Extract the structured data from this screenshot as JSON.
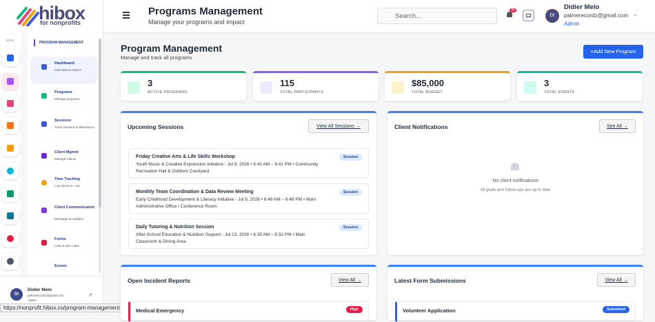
{
  "logo": {
    "name": "hibox",
    "tagline": "for nonprofits"
  },
  "rail": {
    "label": "MAIN"
  },
  "sidebar": {
    "section": "PROGRAM MANAGEMENT",
    "items": [
      {
        "title": "Dashboard",
        "subtitle": "Overview & metrics"
      },
      {
        "title": "Programs",
        "subtitle": "Manage programs"
      },
      {
        "title": "Sessions",
        "subtitle": "Track sessions & attendance"
      },
      {
        "title": "Client Mgmnt",
        "subtitle": "Manage Clients"
      },
      {
        "title": "Time Tracking",
        "subtitle": "Log clients in / out"
      },
      {
        "title": "Client Communication",
        "subtitle": "Messages & updates"
      },
      {
        "title": "Forms",
        "subtitle": "Links & QR codes"
      },
      {
        "title": "Events"
      }
    ],
    "user": {
      "initials": "DI",
      "name": "Didier Melo",
      "email": "palmerecordz@gmail.com",
      "role": "Admin"
    }
  },
  "status_url": "https://nonprofit.hibox.co/program-management",
  "header": {
    "title": "Programs Management",
    "subtitle": "Manage your programs and impact",
    "search_placeholder": "Search...",
    "notification_count": "35",
    "user": {
      "initials": "DI",
      "name": "Didier Melo",
      "email": "palmerecordz@gmail.com",
      "role": "Admin"
    }
  },
  "page": {
    "title": "Program Management",
    "subtitle": "Manage and track all programs",
    "add_button": "+Add New Program"
  },
  "stats": [
    {
      "value": "3",
      "label": "ACTIVE PROGRAMS"
    },
    {
      "value": "115",
      "label": "TOTAL PARTICIPANTS"
    },
    {
      "value": "$85,000",
      "label": "TOTAL BUDGET"
    },
    {
      "value": "3",
      "label": "TOTAL EVENTS"
    }
  ],
  "upcoming_sessions": {
    "title": "Upcoming Sessions",
    "link": "View All Sessions →",
    "items": [
      {
        "name": "Friday Creative Arts & Life Skills Workshop",
        "detail": "Youth Music & Creative Expression Initiative - Jul 8, 2026 • 6:41 AM – 6:41 PM • Community Recreation Hall & Outdoor Courtyard",
        "badge": "Session"
      },
      {
        "name": "Monthly Team Coordination & Data Review Meeting",
        "detail": "Early Childhood Development & Literacy Initiative - Jul 9, 2026 • 6:48 AM – 6:48 PM • Main Administrative Office / Conference Room",
        "badge": "Session"
      },
      {
        "name": "Daily Tutoring & Nutrition Session",
        "detail": "After-School Education & Nutrition Support - Jul 13, 2026 • 6:35 AM – 6:32 PM • Main Classroom & Dining Area",
        "badge": "Session"
      }
    ]
  },
  "client_notifications": {
    "title": "Client Notifications",
    "link": "See All →",
    "empty_title": "No client notifications",
    "empty_text": "All goals and follow-ups are up to date"
  },
  "incident_reports": {
    "title": "Open Incident Reports",
    "link": "View All →",
    "items": [
      {
        "name": "Medical Emergency",
        "badge": "High"
      }
    ]
  },
  "form_submissions": {
    "title": "Latest Form Submissions",
    "link": "View All →",
    "items": [
      {
        "name": "Volunteer Application",
        "badge": "Submitted"
      }
    ]
  }
}
